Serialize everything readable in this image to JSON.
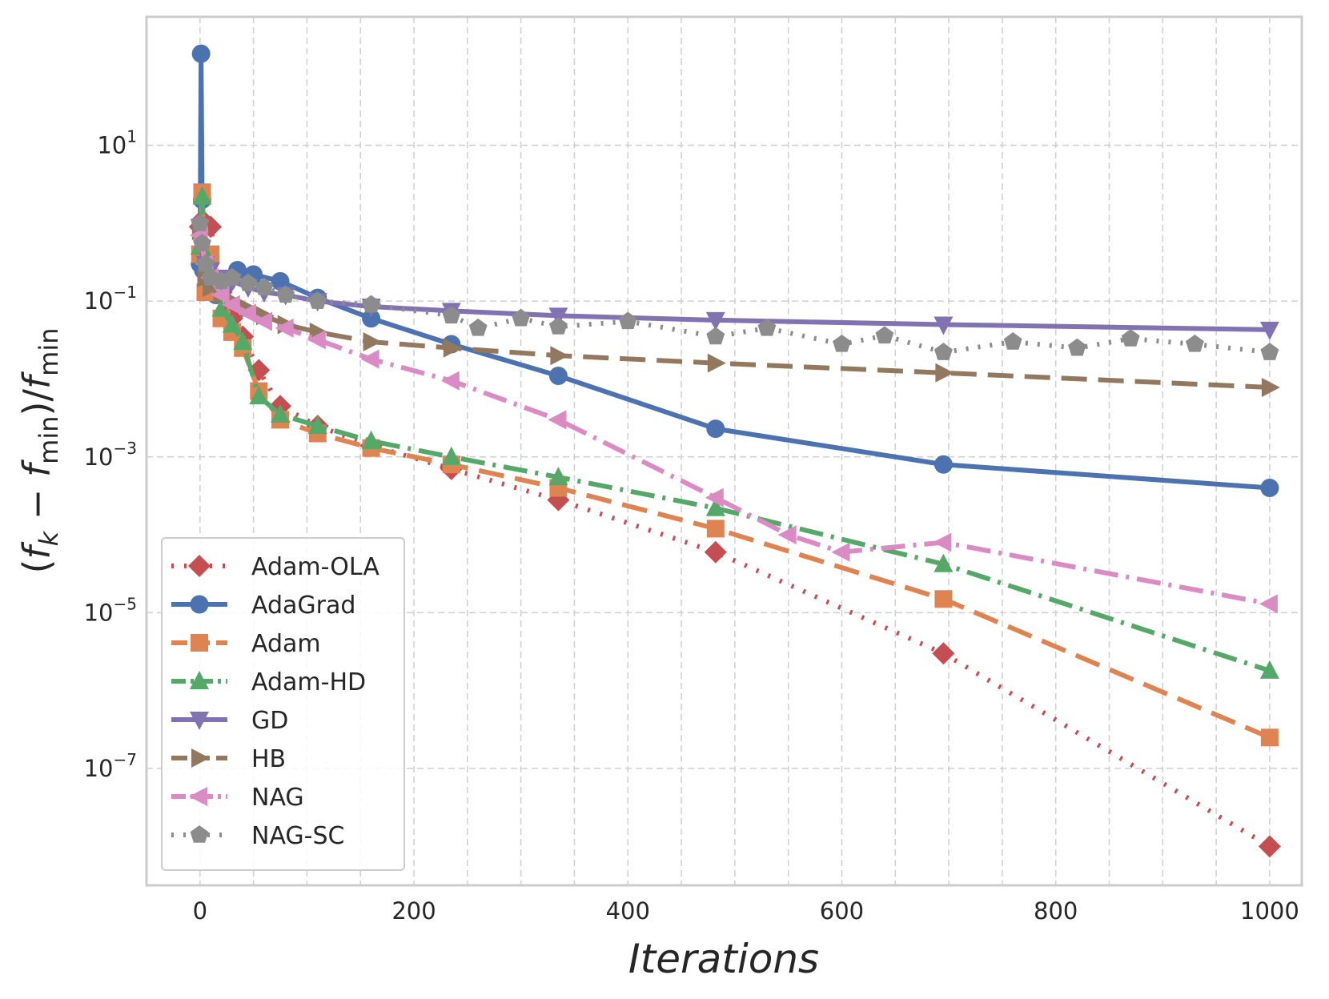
{
  "chart_data": {
    "type": "line",
    "title": "",
    "xlabel": "Iterations",
    "ylabel_parts": [
      "(",
      "f",
      "k",
      " − ",
      "f",
      "min",
      ")/",
      "f",
      "min"
    ],
    "y_scale": "log",
    "xlim": [
      -50,
      1030
    ],
    "ylim_exp": [
      -8.5,
      2.65
    ],
    "x_ticks": [
      0,
      200,
      400,
      600,
      800,
      1000
    ],
    "y_ticks_exp": [
      1,
      -1,
      -3,
      -5,
      -7
    ],
    "y_tick_base": "10",
    "y_tick_exps": [
      "1",
      "−1",
      "−3",
      "−5",
      "−7"
    ],
    "grid": true,
    "legend_position": "lower-left",
    "series": [
      {
        "name": "Adam-OLA",
        "color": "#c44e52",
        "marker": "diamond",
        "dash": "3,13",
        "width": 6,
        "x": [
          0,
          2,
          5,
          10,
          20,
          30,
          40,
          55,
          75,
          110,
          160,
          235,
          335,
          482,
          695,
          1000
        ],
        "y": [
          0.9,
          1.1,
          1.0,
          0.9,
          0.13,
          0.06,
          0.035,
          0.013,
          0.0045,
          0.0025,
          0.0014,
          0.0007,
          0.00028,
          6e-05,
          3e-06,
          1e-08
        ]
      },
      {
        "name": "AdaGrad",
        "color": "#4c72b0",
        "marker": "circle",
        "dash": "",
        "width": 6,
        "x": [
          0,
          1,
          2,
          3,
          4,
          8,
          15,
          25,
          35,
          50,
          75,
          110,
          160,
          235,
          335,
          482,
          695,
          1000
        ],
        "y": [
          0.3,
          150,
          2.0,
          0.25,
          0.3,
          0.2,
          0.12,
          0.17,
          0.25,
          0.22,
          0.18,
          0.11,
          0.06,
          0.028,
          0.011,
          0.0023,
          0.0008,
          0.0004
        ]
      },
      {
        "name": "Adam",
        "color": "#dd8452",
        "marker": "square",
        "dash": "32,14",
        "width": 6,
        "x": [
          0,
          2,
          5,
          10,
          20,
          30,
          40,
          55,
          75,
          110,
          160,
          235,
          335,
          482,
          695,
          1000
        ],
        "y": [
          0.4,
          2.5,
          0.13,
          0.4,
          0.06,
          0.04,
          0.025,
          0.007,
          0.003,
          0.002,
          0.0013,
          0.0008,
          0.0004,
          0.00012,
          1.5e-05,
          2.5e-07
        ]
      },
      {
        "name": "Adam-HD",
        "color": "#55a868",
        "marker": "triangle-up",
        "dash": "30,10,4,10",
        "width": 6,
        "x": [
          0,
          2,
          5,
          10,
          20,
          30,
          40,
          55,
          75,
          110,
          160,
          235,
          335,
          482,
          695,
          1000
        ],
        "y": [
          0.5,
          2.2,
          0.4,
          0.2,
          0.08,
          0.05,
          0.03,
          0.006,
          0.0035,
          0.0025,
          0.0016,
          0.001,
          0.00055,
          0.00022,
          4.2e-05,
          1.8e-06
        ]
      },
      {
        "name": "GD",
        "color": "#8172b2",
        "marker": "triangle-down",
        "dash": "",
        "width": 6,
        "x": [
          0,
          5,
          10,
          20,
          30,
          45,
          60,
          80,
          110,
          160,
          235,
          335,
          482,
          695,
          1000
        ],
        "y": [
          0.9,
          0.3,
          0.25,
          0.2,
          0.18,
          0.15,
          0.13,
          0.12,
          0.1,
          0.085,
          0.075,
          0.065,
          0.057,
          0.05,
          0.043
        ]
      },
      {
        "name": "HB",
        "color": "#937860",
        "marker": "triangle-right",
        "dash": "32,14",
        "width": 6,
        "x": [
          0,
          5,
          10,
          20,
          30,
          45,
          60,
          80,
          110,
          160,
          235,
          335,
          482,
          695,
          1000
        ],
        "y": [
          0.8,
          0.2,
          0.15,
          0.12,
          0.1,
          0.08,
          0.065,
          0.05,
          0.04,
          0.03,
          0.025,
          0.02,
          0.016,
          0.012,
          0.0078
        ]
      },
      {
        "name": "NAG",
        "color": "#da8bc3",
        "marker": "triangle-left",
        "dash": "30,10,4,10",
        "width": 6,
        "x": [
          0,
          5,
          10,
          20,
          30,
          45,
          60,
          80,
          110,
          160,
          235,
          335,
          482,
          550,
          600,
          695,
          1000
        ],
        "y": [
          0.7,
          0.3,
          0.2,
          0.12,
          0.09,
          0.07,
          0.055,
          0.045,
          0.032,
          0.018,
          0.0095,
          0.003,
          0.0003,
          0.0001,
          6e-05,
          8e-05,
          1.3e-05
        ]
      },
      {
        "name": "NAG-SC",
        "color": "#8c8c8c",
        "marker": "pentagon",
        "dash": "3,12",
        "width": 6,
        "x": [
          0,
          2,
          5,
          10,
          20,
          30,
          45,
          60,
          80,
          110,
          160,
          235,
          260,
          300,
          335,
          400,
          482,
          530,
          600,
          640,
          695,
          760,
          820,
          870,
          930,
          1000
        ],
        "y": [
          1.0,
          0.55,
          0.3,
          0.2,
          0.18,
          0.2,
          0.17,
          0.15,
          0.12,
          0.1,
          0.09,
          0.065,
          0.045,
          0.06,
          0.047,
          0.055,
          0.035,
          0.045,
          0.028,
          0.036,
          0.022,
          0.03,
          0.025,
          0.033,
          0.028,
          0.022
        ]
      }
    ]
  }
}
